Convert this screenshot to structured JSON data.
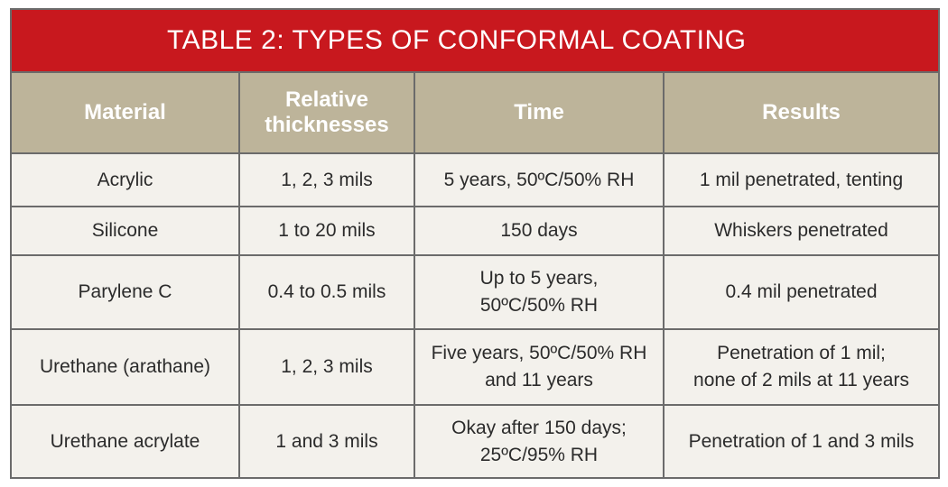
{
  "table": {
    "title": "TABLE 2: TYPES OF CONFORMAL COATING",
    "headers": {
      "material": "Material",
      "thickness_line1": "Relative",
      "thickness_line2": "thicknesses",
      "time": "Time",
      "results": "Results"
    },
    "rows": [
      {
        "material": "Acrylic",
        "thickness": "1, 2, 3 mils",
        "time_line1": "5 years, 50ºC/50% RH",
        "time_line2": "",
        "results_line1": "1 mil penetrated, tenting",
        "results_line2": ""
      },
      {
        "material": "Silicone",
        "thickness": "1 to 20 mils",
        "time_line1": "150 days",
        "time_line2": "",
        "results_line1": "Whiskers penetrated",
        "results_line2": ""
      },
      {
        "material": "Parylene C",
        "thickness": "0.4 to 0.5 mils",
        "time_line1": "Up to 5 years,",
        "time_line2": "50ºC/50% RH",
        "results_line1": "0.4 mil penetrated",
        "results_line2": ""
      },
      {
        "material": "Urethane (arathane)",
        "thickness": "1, 2, 3 mils",
        "time_line1": "Five years, 50ºC/50% RH",
        "time_line2": "and 11 years",
        "results_line1": "Penetration of 1 mil;",
        "results_line2": "none of 2 mils at 11 years"
      },
      {
        "material": "Urethane acrylate",
        "thickness": "1 and 3 mils",
        "time_line1": "Okay after 150 days;",
        "time_line2": "25ºC/95% RH",
        "results_line1": "Penetration of 1 and 3 mils",
        "results_line2": ""
      }
    ],
    "colors": {
      "title_bg": "#c8181e",
      "header_bg": "#bdb49a",
      "cell_bg": "#f3f1ec",
      "border": "#6b6b6b"
    }
  }
}
